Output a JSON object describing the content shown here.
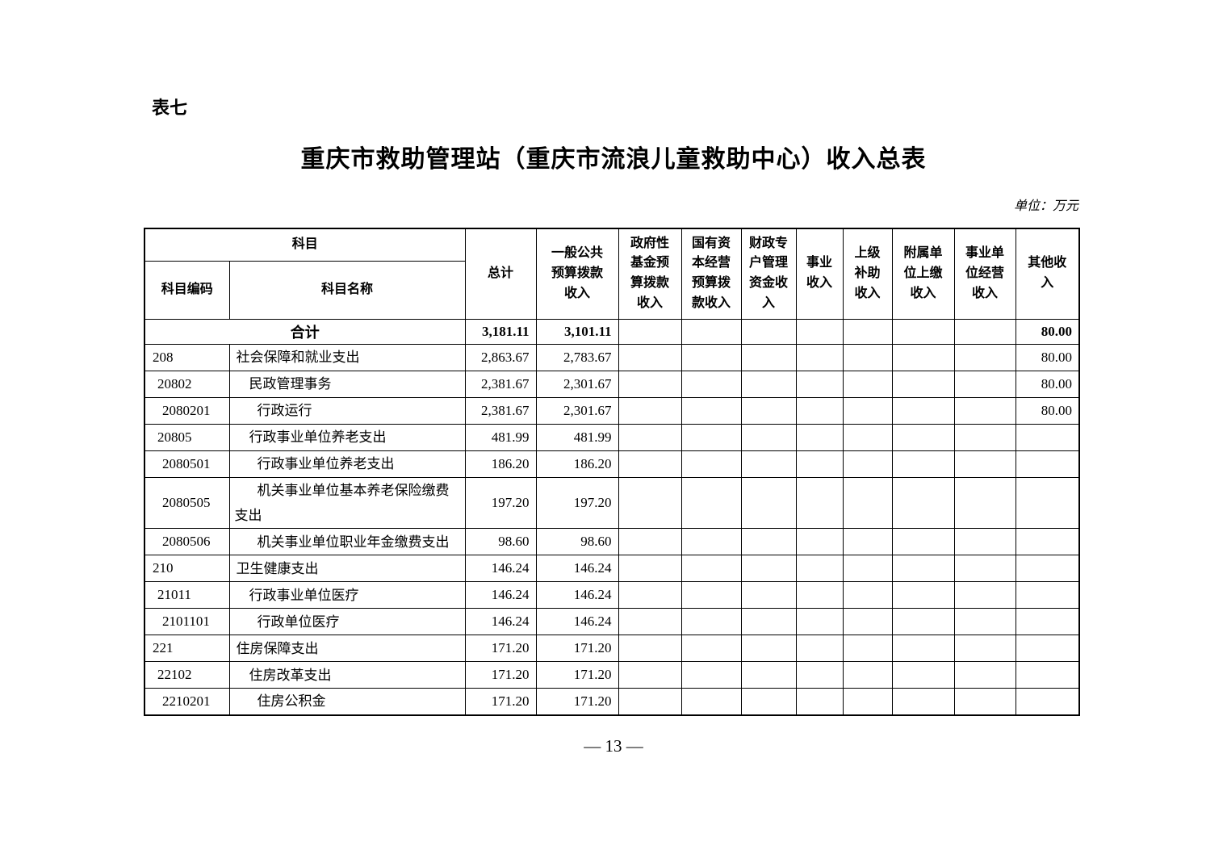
{
  "page": {
    "table_label": "表七",
    "title": "重庆市救助管理站（重庆市流浪儿童救助中心）收入总表",
    "unit_note": "单位：万元",
    "page_number": "— 13 —"
  },
  "table": {
    "header": {
      "subject_group": "科目",
      "subject_code": "科目编码",
      "subject_name": "科目名称",
      "columns": [
        "总计",
        "一般公共\n预算拨款\n收入",
        "政府性\n基金预\n算拨款\n收入",
        "国有资\n本经营\n预算拨\n款收入",
        "财政专\n户管理\n资金收\n入",
        "事业\n收入",
        "上级\n补助\n收入",
        "附属单\n位上缴\n收入",
        "事业单\n位经营\n收入",
        "其他收\n入"
      ]
    },
    "total_row": {
      "name": "合计",
      "values": [
        "3,181.11",
        "3,101.11",
        "",
        "",
        "",
        "",
        "",
        "",
        "",
        "80.00"
      ]
    },
    "rows": [
      {
        "code": "208",
        "name": "社会保障和就业支出",
        "level": 1,
        "values": [
          "2,863.67",
          "2,783.67",
          "",
          "",
          "",
          "",
          "",
          "",
          "",
          "80.00"
        ]
      },
      {
        "code": "20802",
        "name": "民政管理事务",
        "level": 2,
        "values": [
          "2,381.67",
          "2,301.67",
          "",
          "",
          "",
          "",
          "",
          "",
          "",
          "80.00"
        ]
      },
      {
        "code": "2080201",
        "name": "行政运行",
        "level": 3,
        "values": [
          "2,381.67",
          "2,301.67",
          "",
          "",
          "",
          "",
          "",
          "",
          "",
          "80.00"
        ]
      },
      {
        "code": "20805",
        "name": "行政事业单位养老支出",
        "level": 2,
        "values": [
          "481.99",
          "481.99",
          "",
          "",
          "",
          "",
          "",
          "",
          "",
          ""
        ]
      },
      {
        "code": "2080501",
        "name": "行政事业单位养老支出",
        "level": 3,
        "values": [
          "186.20",
          "186.20",
          "",
          "",
          "",
          "",
          "",
          "",
          "",
          ""
        ]
      },
      {
        "code": "2080505",
        "name": "机关事业单位基本养老保险缴费支出",
        "level": 3,
        "values": [
          "197.20",
          "197.20",
          "",
          "",
          "",
          "",
          "",
          "",
          "",
          ""
        ]
      },
      {
        "code": "2080506",
        "name": "机关事业单位职业年金缴费支出",
        "level": 3,
        "values": [
          "98.60",
          "98.60",
          "",
          "",
          "",
          "",
          "",
          "",
          "",
          ""
        ]
      },
      {
        "code": "210",
        "name": "卫生健康支出",
        "level": 1,
        "values": [
          "146.24",
          "146.24",
          "",
          "",
          "",
          "",
          "",
          "",
          "",
          ""
        ]
      },
      {
        "code": "21011",
        "name": "行政事业单位医疗",
        "level": 2,
        "values": [
          "146.24",
          "146.24",
          "",
          "",
          "",
          "",
          "",
          "",
          "",
          ""
        ]
      },
      {
        "code": "2101101",
        "name": "行政单位医疗",
        "level": 3,
        "values": [
          "146.24",
          "146.24",
          "",
          "",
          "",
          "",
          "",
          "",
          "",
          ""
        ]
      },
      {
        "code": "221",
        "name": "住房保障支出",
        "level": 1,
        "values": [
          "171.20",
          "171.20",
          "",
          "",
          "",
          "",
          "",
          "",
          "",
          ""
        ]
      },
      {
        "code": "22102",
        "name": "住房改革支出",
        "level": 2,
        "values": [
          "171.20",
          "171.20",
          "",
          "",
          "",
          "",
          "",
          "",
          "",
          ""
        ]
      },
      {
        "code": "2210201",
        "name": "住房公积金",
        "level": 3,
        "values": [
          "171.20",
          "171.20",
          "",
          "",
          "",
          "",
          "",
          "",
          "",
          ""
        ]
      }
    ]
  }
}
